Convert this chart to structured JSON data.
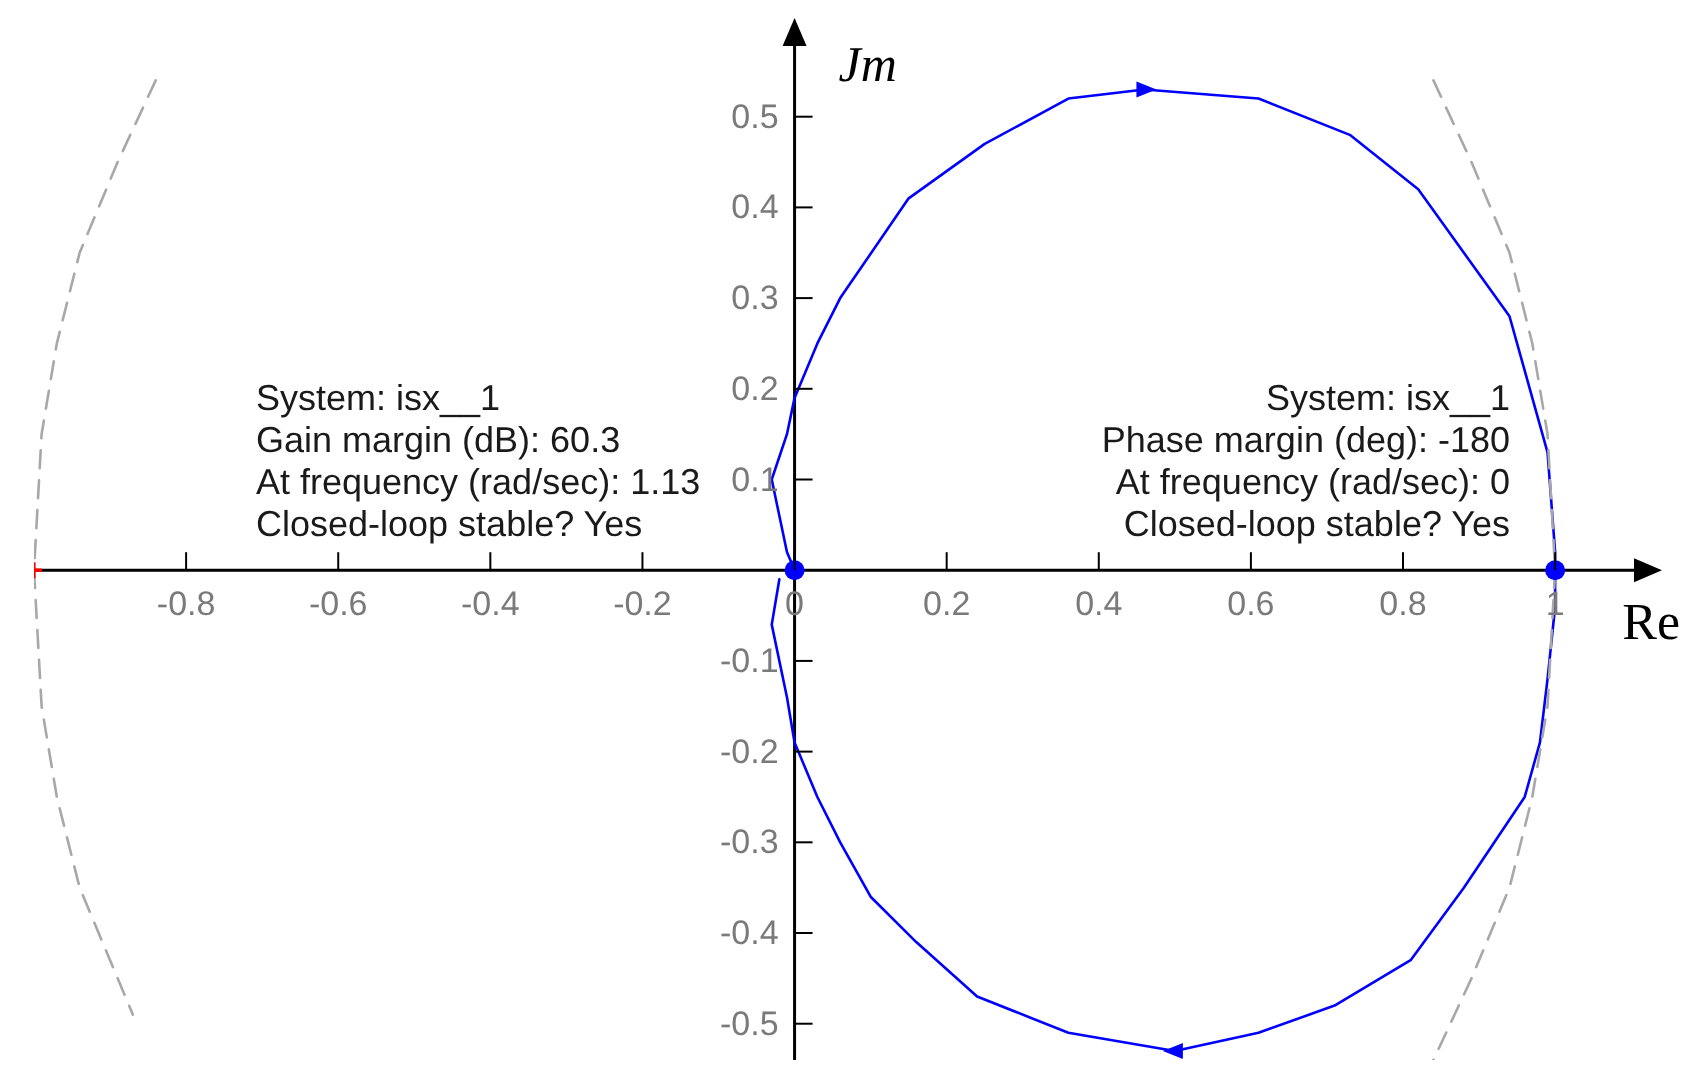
{
  "chart_data": {
    "type": "line",
    "xlabel": "Re",
    "ylabel": "Jm",
    "annotations": [
      "System: isx__1\nGain margin (dB): 60.3\nAt frequency (rad/sec): 1.13\nClosed-loop stable? Yes",
      "System: isx__1\nPhase margin (deg): -180\nAt frequency (rad/sec): 0\nClosed-loop stable? Yes"
    ],
    "xlim": [
      -1,
      1.13
    ],
    "ylim": [
      -0.54,
      0.6
    ],
    "xticks": [
      -0.8,
      -0.6,
      -0.4,
      -0.2,
      0,
      0.2,
      0.4,
      0.6,
      0.8,
      1
    ],
    "yticks": [
      -0.5,
      -0.4,
      -0.3,
      -0.2,
      -0.1,
      0.1,
      0.2,
      0.3,
      0.4,
      0.5
    ],
    "series": [
      {
        "color": "#0000ff",
        "marker": "none",
        "x": [
          0,
          -0.01,
          -0.02,
          -0.03,
          -0.01,
          0,
          0.03,
          0.06,
          0.15,
          0.25,
          0.36,
          0.46,
          0.61,
          0.73,
          0.82,
          0.88,
          0.94,
          0.96,
          0.99,
          1,
          1,
          1,
          0.99,
          0.98,
          0.96,
          0.88,
          0.81,
          0.71,
          0.61,
          0.5,
          0.36,
          0.24,
          0.16,
          0.1,
          0.06,
          0.03,
          0,
          -0.01,
          -0.03,
          -0.02
        ],
        "values": [
          0,
          0.02,
          0.06,
          0.1,
          0.15,
          0.19,
          0.25,
          0.3,
          0.41,
          0.47,
          0.52,
          0.53,
          0.52,
          0.48,
          0.42,
          0.35,
          0.28,
          0.22,
          0.13,
          0.02,
          0,
          -0.04,
          -0.12,
          -0.19,
          -0.25,
          -0.35,
          -0.43,
          -0.48,
          -0.51,
          -0.53,
          -0.51,
          -0.47,
          -0.41,
          -0.36,
          -0.3,
          -0.25,
          -0.19,
          -0.14,
          -0.06,
          -0.01
        ]
      },
      {
        "color": "#a8a8a8",
        "marker": "none",
        "line_style": "dashed",
        "x": [
          -0.84,
          -0.89,
          -0.94,
          -0.97,
          -0.99,
          -1,
          -0.99,
          -0.97,
          -0.94,
          -0.89,
          -0.87
        ],
        "values": [
          0.54,
          0.45,
          0.35,
          0.25,
          0.15,
          0,
          -0.15,
          -0.25,
          -0.35,
          -0.45,
          -0.49
        ]
      },
      {
        "color": "#a8a8a8",
        "marker": "none",
        "line_style": "dashed",
        "x": [
          0.84,
          0.89,
          0.94,
          0.97,
          0.99,
          1,
          0.99,
          0.97,
          0.94,
          0.89,
          0.84
        ],
        "values": [
          0.54,
          0.45,
          0.35,
          0.25,
          0.15,
          0,
          -0.15,
          -0.25,
          -0.35,
          -0.45,
          -0.54
        ]
      },
      {
        "type": "scatter",
        "color": "#0000ff",
        "marker": "circle",
        "x": [
          0,
          1
        ],
        "values": [
          0,
          0
        ]
      },
      {
        "type": "scatter",
        "color": "#ff0000",
        "marker": "cross",
        "x": [
          -1
        ],
        "values": [
          0
        ]
      }
    ]
  }
}
